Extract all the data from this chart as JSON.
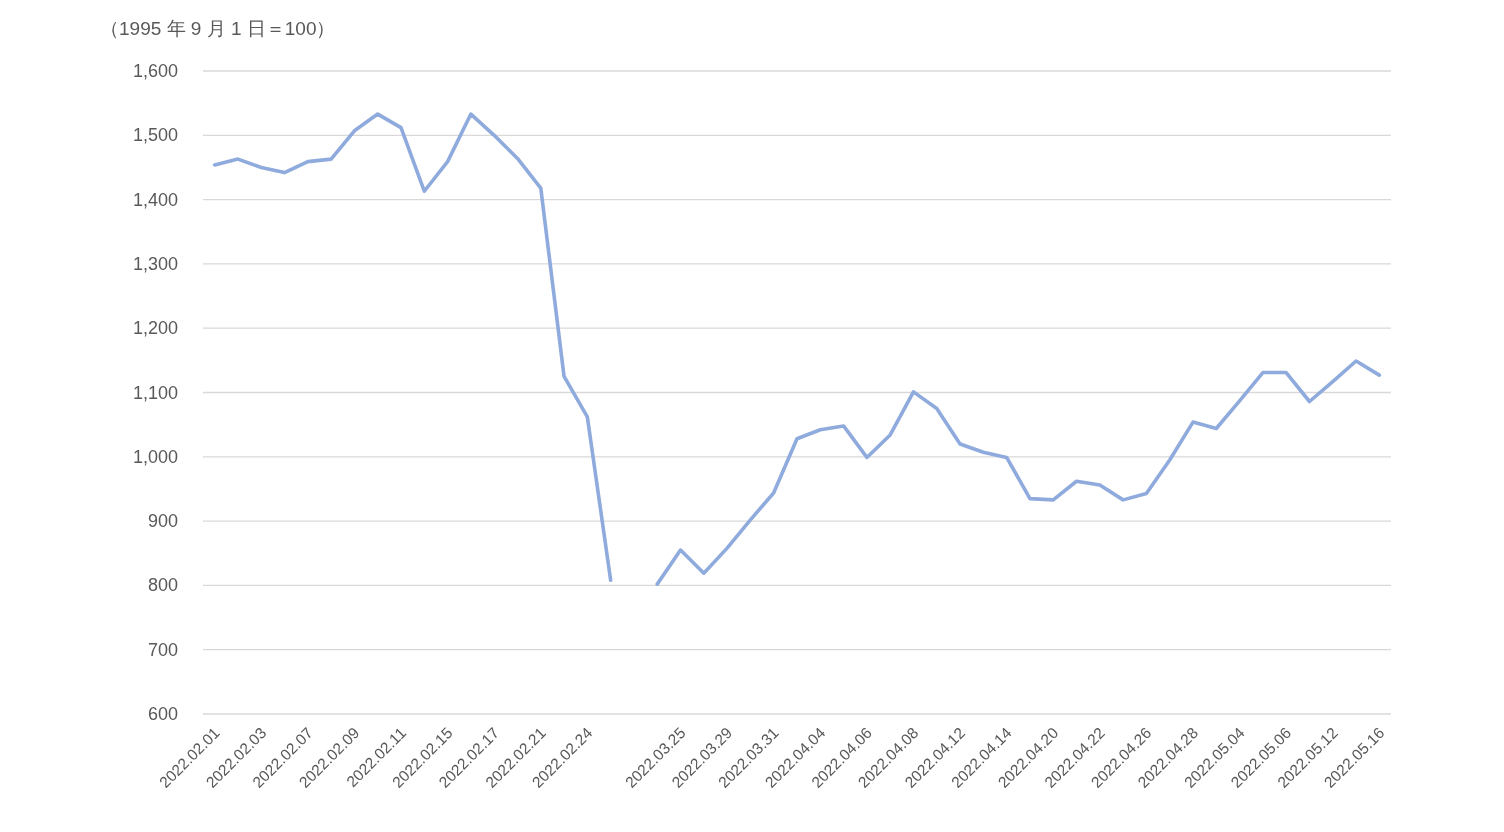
{
  "chart_data": {
    "type": "line",
    "ylabel": "（1995 年 9 月 1 日＝100）",
    "categories": [
      "2022.02.01",
      null,
      "2022.02.03",
      null,
      "2022.02.07",
      null,
      "2022.02.09",
      null,
      "2022.02.11",
      null,
      "2022.02.15",
      null,
      "2022.02.17",
      null,
      "2022.02.21",
      null,
      "2022.02.24",
      null,
      null,
      null,
      "2022.03.25",
      null,
      "2022.03.29",
      null,
      "2022.03.31",
      null,
      "2022.04.04",
      null,
      "2022.04.06",
      null,
      "2022.04.08",
      null,
      "2022.04.12",
      null,
      "2022.04.14",
      null,
      "2022.04.20",
      null,
      "2022.04.22",
      null,
      "2022.04.26",
      null,
      "2022.04.28",
      null,
      "2022.05.04",
      null,
      "2022.05.06",
      null,
      "2022.05.12",
      null,
      "2022.05.16"
    ],
    "series": [
      {
        "color": "#8faadc",
        "values": [
          1454,
          1463,
          1450,
          1442,
          1459,
          1463,
          1507,
          1533,
          1512,
          1413,
          1459,
          1533,
          1500,
          1464,
          1418,
          1125,
          1062,
          808,
          null,
          802,
          855,
          819,
          858,
          902,
          944,
          1028,
          1042,
          1048,
          999,
          1034,
          1101,
          1075,
          1020,
          1007,
          999,
          935,
          933,
          962,
          956,
          933,
          943,
          995,
          1054,
          1044,
          1087,
          1131,
          1131,
          1086,
          1117,
          1149,
          1127
        ]
      }
    ],
    "ylim": [
      600,
      1600
    ],
    "yticks": [
      600,
      700,
      800,
      900,
      {
        "value": 1000,
        "label": "1,000"
      },
      {
        "value": 1100,
        "label": "1,100"
      },
      {
        "value": 1200,
        "label": "1,200"
      },
      {
        "value": 1300,
        "label": "1,300"
      },
      {
        "value": 1400,
        "label": "1,400"
      },
      {
        "value": 1500,
        "label": "1,500"
      },
      {
        "value": 1600,
        "label": "1,600"
      }
    ],
    "grid": "y"
  }
}
